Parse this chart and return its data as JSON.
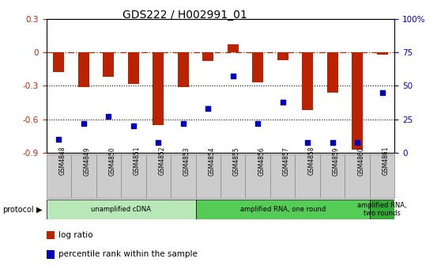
{
  "title": "GDS222 / H002991_01",
  "samples": [
    "GSM4848",
    "GSM4849",
    "GSM4850",
    "GSM4851",
    "GSM4852",
    "GSM4853",
    "GSM4854",
    "GSM4855",
    "GSM4856",
    "GSM4857",
    "GSM4858",
    "GSM4859",
    "GSM4860",
    "GSM4861"
  ],
  "log_ratio": [
    -0.18,
    -0.31,
    -0.22,
    -0.28,
    -0.65,
    -0.31,
    -0.08,
    0.07,
    -0.27,
    -0.07,
    -0.52,
    -0.36,
    -0.87,
    -0.02
  ],
  "percentile": [
    10,
    22,
    27,
    20,
    8,
    22,
    33,
    57,
    22,
    38,
    8,
    8,
    8,
    45
  ],
  "ylim_left": [
    -0.9,
    0.3
  ],
  "ylim_right": [
    0,
    100
  ],
  "yticks_left": [
    -0.9,
    -0.6,
    -0.3,
    0.0,
    0.3
  ],
  "yticks_right": [
    0,
    25,
    50,
    75,
    100
  ],
  "ytick_labels_right": [
    "0",
    "25",
    "50",
    "75",
    "100%"
  ],
  "bar_color": "#bb2200",
  "dot_color": "#0000bb",
  "dotted_lines": [
    -0.3,
    -0.6
  ],
  "protocols": [
    {
      "label": "unamplified cDNA",
      "start": 0,
      "end": 5,
      "color": "#b8e8b8"
    },
    {
      "label": "amplified RNA, one round",
      "start": 6,
      "end": 12,
      "color": "#66cc66"
    },
    {
      "label": "amplified RNA,\ntwo rounds",
      "start": 13,
      "end": 13,
      "color": "#44aa44"
    }
  ],
  "legend_items": [
    {
      "label": "log ratio",
      "color": "#bb2200"
    },
    {
      "label": "percentile rank within the sample",
      "color": "#0000bb"
    }
  ],
  "bar_width": 0.45,
  "background_color": "#ffffff",
  "tick_color_left": "#cc2200",
  "tick_color_right": "#0000cc",
  "sample_box_color": "#cccccc",
  "sample_box_edge": "#888888"
}
